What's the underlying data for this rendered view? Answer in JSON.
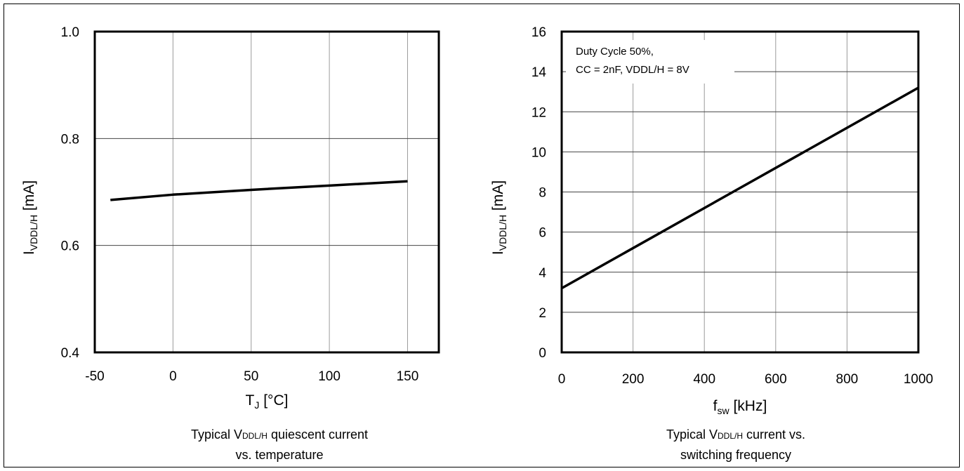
{
  "chart_data": [
    {
      "type": "line",
      "title": "",
      "caption": {
        "pre": "Typical V",
        "sub": "DDL/H",
        "post": " quiescent current",
        "line2": "vs. temperature"
      },
      "xlabel": {
        "main": "T",
        "sub": "J",
        "post": " [°C]"
      },
      "ylabel": {
        "main": "I",
        "sub": "VDDL/H",
        "post": " [mA]"
      },
      "xlim": [
        -50,
        170
      ],
      "ylim": [
        0.4,
        1.0
      ],
      "x_ticks": [
        -50,
        0,
        50,
        100,
        150
      ],
      "x_tick_labels": [
        "-50",
        "0",
        "50",
        "100",
        "150"
      ],
      "y_ticks": [
        0.4,
        0.6,
        0.8,
        1.0
      ],
      "y_tick_labels": [
        "0.4",
        "0.6",
        "0.8",
        "1.0"
      ],
      "grid": true,
      "series": [
        {
          "x": [
            -40,
            0,
            50,
            100,
            150
          ],
          "y": [
            0.685,
            0.695,
            0.704,
            0.712,
            0.72
          ]
        }
      ]
    },
    {
      "type": "line",
      "title": "",
      "caption": {
        "pre": "Typical V",
        "sub": "DDL/H",
        "post": " current vs.",
        "line2": "switching frequency"
      },
      "xlabel": {
        "main": "f",
        "sub": "sw",
        "post": " [kHz]"
      },
      "ylabel": {
        "main": "I",
        "sub": "VDDL/H",
        "post": " [mA]"
      },
      "xlim": [
        0,
        1000
      ],
      "ylim": [
        0,
        16
      ],
      "x_ticks": [
        0,
        200,
        400,
        600,
        800,
        1000
      ],
      "x_tick_labels": [
        "0",
        "200",
        "400",
        "600",
        "800",
        "1000"
      ],
      "y_ticks": [
        0,
        2,
        4,
        6,
        8,
        10,
        12,
        14,
        16
      ],
      "y_tick_labels": [
        "0",
        "2",
        "4",
        "6",
        "8",
        "10",
        "12",
        "14",
        "16"
      ],
      "grid": true,
      "annotation": [
        "Duty Cycle 50%,",
        "CC = 2nF,  VDDL/H = 8V"
      ],
      "series": [
        {
          "x": [
            0,
            1000
          ],
          "y": [
            3.2,
            13.2
          ]
        }
      ]
    }
  ],
  "style": {
    "line_color": "#000000",
    "grid_color": "#9a9a9a"
  }
}
